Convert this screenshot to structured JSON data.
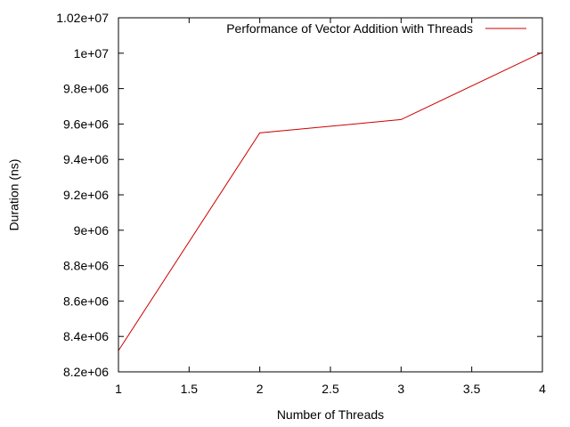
{
  "chart_data": {
    "type": "line",
    "title": "",
    "xlabel": "Number of Threads",
    "ylabel": "Duration (ns)",
    "xlim": [
      1,
      4
    ],
    "ylim": [
      8200000,
      10200000
    ],
    "x_ticks": [
      1,
      1.5,
      2,
      2.5,
      3,
      3.5,
      4
    ],
    "x_tick_labels": [
      "1",
      "1.5",
      "2",
      "2.5",
      "3",
      "3.5",
      "4"
    ],
    "y_ticks": [
      8200000,
      8400000,
      8600000,
      8800000,
      9000000,
      9200000,
      9400000,
      9600000,
      9800000,
      10000000,
      10200000
    ],
    "y_tick_labels": [
      "8.2e+06",
      "8.4e+06",
      "8.6e+06",
      "8.8e+06",
      "9e+06",
      "9.2e+06",
      "9.4e+06",
      "9.6e+06",
      "9.8e+06",
      "1e+07",
      "1.02e+07"
    ],
    "grid": false,
    "legend_position": "top-right",
    "series": [
      {
        "name": "Performance of Vector Addition with Threads",
        "color": "#cc0000",
        "x": [
          1,
          2,
          3,
          4
        ],
        "y": [
          8320000,
          9550000,
          9625000,
          10005000
        ]
      }
    ]
  }
}
